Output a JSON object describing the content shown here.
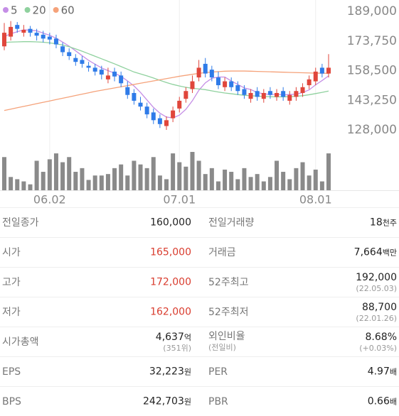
{
  "chart_data": {
    "type": "candlestick",
    "legend": [
      {
        "name": "5",
        "color": "#c58ee6"
      },
      {
        "name": "20",
        "color": "#8fd19e"
      },
      {
        "name": "60",
        "color": "#f5a27a"
      }
    ],
    "categories": [
      null,
      null,
      null,
      null,
      null,
      null,
      null,
      "06.02",
      null,
      null,
      null,
      null,
      null,
      null,
      null,
      null,
      null,
      null,
      null,
      null,
      null,
      null,
      null,
      null,
      null,
      null,
      null,
      "07.01",
      null,
      null,
      null,
      null,
      null,
      null,
      null,
      null,
      null,
      null,
      null,
      null,
      null,
      null,
      null,
      null,
      null,
      null,
      null,
      null,
      "08.01",
      null,
      null
    ],
    "ylim": [
      128000,
      189000
    ],
    "yticks": [
      {
        "value": 189000,
        "label": "189,000"
      },
      {
        "value": 173750,
        "label": "173,750"
      },
      {
        "value": 158500,
        "label": "158,500"
      },
      {
        "value": 143250,
        "label": "143,250"
      },
      {
        "value": 128000,
        "label": "128,000"
      }
    ],
    "up_color": "#e0463b",
    "down_color": "#2f7be8",
    "open": [
      171000,
      176000,
      182000,
      178000,
      180000,
      178000,
      177000,
      176000,
      175000,
      171000,
      168000,
      165000,
      164000,
      161000,
      160000,
      159000,
      154000,
      158000,
      156000,
      150000,
      147000,
      142000,
      140000,
      137000,
      134000,
      130000,
      134000,
      139000,
      144000,
      149000,
      155000,
      162000,
      159000,
      155000,
      150000,
      153000,
      151000,
      149000,
      144000,
      148000,
      144000,
      148000,
      145000,
      148000,
      143000,
      145000,
      147000,
      151000,
      153000,
      160000,
      157000
    ],
    "high": [
      183000,
      184000,
      183500,
      182000,
      181500,
      180000,
      179000,
      178000,
      177000,
      173000,
      170000,
      167000,
      166000,
      163000,
      162000,
      161000,
      160000,
      160000,
      158000,
      153000,
      149000,
      145000,
      142000,
      139000,
      136000,
      135000,
      140000,
      145000,
      150000,
      156000,
      164000,
      165000,
      161000,
      158000,
      155000,
      155000,
      153000,
      151000,
      149000,
      150000,
      149000,
      150000,
      149000,
      150000,
      148000,
      150000,
      152000,
      156000,
      160000,
      162000,
      167000
    ],
    "low": [
      169000,
      174000,
      178000,
      176000,
      176000,
      174000,
      173000,
      172000,
      170000,
      166000,
      164000,
      161000,
      160000,
      158000,
      156000,
      154000,
      152000,
      153000,
      150000,
      144000,
      141000,
      138000,
      134000,
      131000,
      129000,
      128000,
      132000,
      137000,
      142000,
      147000,
      153000,
      155000,
      153000,
      149000,
      148000,
      148000,
      146000,
      144000,
      142000,
      143000,
      142000,
      144000,
      143000,
      143000,
      141000,
      143000,
      145000,
      149000,
      151000,
      155000,
      155000
    ],
    "close": [
      178000,
      181000,
      180000,
      179500,
      178000,
      176500,
      175000,
      174500,
      172000,
      168000,
      166000,
      163000,
      162000,
      160000,
      158000,
      156500,
      156000,
      155500,
      152000,
      146000,
      143000,
      140000,
      136000,
      133000,
      131000,
      133000,
      138000,
      143000,
      148000,
      153000,
      160000,
      157000,
      155000,
      151000,
      153000,
      150000,
      148000,
      146000,
      147000,
      145000,
      147000,
      146000,
      147000,
      145000,
      146000,
      148000,
      150000,
      154000,
      158000,
      157000,
      160000
    ],
    "ma": [
      {
        "name": "5",
        "color": "#c58ee6",
        "values": [
          176000,
          177500,
          178500,
          179500,
          179300,
          179000,
          177800,
          176700,
          175200,
          173200,
          171100,
          168700,
          166200,
          163800,
          161800,
          159900,
          158500,
          157200,
          155600,
          153200,
          150600,
          147300,
          143400,
          139600,
          136600,
          134600,
          134200,
          135600,
          138600,
          143000,
          148400,
          152200,
          154600,
          155200,
          155200,
          153200,
          151400,
          149600,
          148800,
          147200,
          146600,
          146200,
          146400,
          146000,
          146200,
          146400,
          147200,
          148600,
          151200,
          153400,
          155800
        ]
      },
      {
        "name": "20",
        "color": "#8fd19e",
        "values": [
          173000,
          173200,
          173300,
          173400,
          173400,
          173300,
          173100,
          172800,
          172300,
          171700,
          170800,
          169700,
          168500,
          167200,
          165900,
          164600,
          163300,
          162000,
          160600,
          159200,
          157800,
          156800,
          155800,
          154700,
          153500,
          152400,
          151400,
          150600,
          149900,
          149400,
          149100,
          148700,
          148100,
          147500,
          147000,
          146600,
          146200,
          145800,
          145600,
          145400,
          145200,
          145100,
          145000,
          145000,
          145100,
          145300,
          145600,
          146100,
          146700,
          147300,
          148000
        ]
      },
      {
        "name": "60",
        "color": "#f5a27a",
        "values": [
          138000,
          138700,
          139400,
          140100,
          140800,
          141500,
          142200,
          142900,
          143600,
          144300,
          145000,
          145700,
          146400,
          147100,
          147800,
          148400,
          149000,
          149600,
          150200,
          150800,
          151400,
          152000,
          152600,
          153200,
          153800,
          154400,
          155000,
          155600,
          156100,
          156600,
          157100,
          157500,
          157800,
          158000,
          158200,
          158300,
          158300,
          158300,
          158200,
          158100,
          158000,
          157900,
          157800,
          157700,
          157600,
          157500,
          157400,
          157300,
          157200,
          157200,
          157100
        ]
      }
    ],
    "volume": {
      "color": "#8a8a8a",
      "values": [
        45,
        18,
        15,
        12,
        8,
        40,
        25,
        42,
        50,
        38,
        45,
        25,
        30,
        14,
        20,
        20,
        22,
        30,
        35,
        20,
        40,
        35,
        30,
        45,
        20,
        15,
        50,
        38,
        32,
        52,
        40,
        22,
        30,
        12,
        28,
        25,
        15,
        30,
        18,
        22,
        12,
        18,
        40,
        25,
        15,
        30,
        38,
        20,
        28,
        12,
        50
      ]
    }
  },
  "table": {
    "rows": [
      [
        {
          "label": "전일종가",
          "value": "160,000"
        },
        {
          "label": "전일거래량",
          "value": "18",
          "unit": "천주"
        }
      ],
      [
        {
          "label": "시가",
          "value": "165,000",
          "color": "#d93c2e"
        },
        {
          "label": "거래금",
          "value": "7,664",
          "unit": "백만"
        }
      ],
      [
        {
          "label": "고가",
          "value": "172,000",
          "color": "#d93c2e"
        },
        {
          "label": "52주최고",
          "value": "192,000",
          "sub": "(22.05.03)"
        }
      ],
      [
        {
          "label": "저가",
          "value": "162,000",
          "color": "#d93c2e"
        },
        {
          "label": "52주최저",
          "value": "88,700",
          "sub": "(22.01.26)"
        }
      ],
      [
        {
          "label": "시가총액",
          "value": "4,637",
          "unit": "억",
          "sub": "(351위)"
        },
        {
          "label": "외인비율",
          "label_sub": "(전일비)",
          "value": "8.68%",
          "sub": "(+0.03%)"
        }
      ],
      [
        {
          "label": "EPS",
          "value": "32,223",
          "unit": "원"
        },
        {
          "label": "PER",
          "value": "4.97",
          "unit": "배"
        }
      ],
      [
        {
          "label": "BPS",
          "value": "242,703",
          "unit": "원"
        },
        {
          "label": "PBR",
          "value": "0.66",
          "unit": "배"
        }
      ]
    ]
  }
}
